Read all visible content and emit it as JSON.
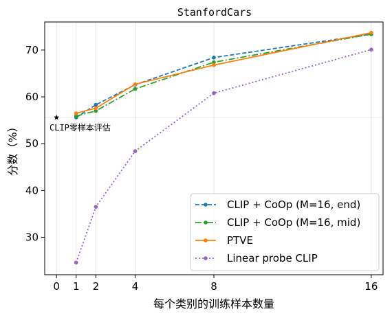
{
  "chart_data": {
    "type": "line",
    "title": "StanfordCars",
    "xlabel": "每个类别的训练样本数量",
    "ylabel": "分数（%）",
    "xlim": [
      -0.6,
      16.6
    ],
    "ylim": [
      22,
      76
    ],
    "x_ticks": [
      0,
      1,
      2,
      4,
      8,
      16
    ],
    "y_ticks": [
      30,
      40,
      50,
      60,
      70
    ],
    "grid": "vertical",
    "legend_position": "lower-right",
    "zero_shot": {
      "x": 0,
      "y": 55.6,
      "label": "CLIP零样本评估",
      "reference_line": true
    },
    "series": [
      {
        "name": "CLIP + CoOp (M=16, end)",
        "color": "#1f77b4",
        "dash": "6,3",
        "x": [
          1,
          2,
          4,
          8,
          16
        ],
        "y": [
          55.6,
          58.3,
          62.6,
          68.4,
          73.4
        ]
      },
      {
        "name": "CLIP + CoOp (M=16, mid)",
        "color": "#2ca02c",
        "dash": "9,3,2,3",
        "x": [
          1,
          2,
          4,
          8,
          16
        ],
        "y": [
          55.9,
          57.0,
          61.7,
          67.4,
          73.4
        ]
      },
      {
        "name": "PTVE",
        "color": "#ff7f0e",
        "dash": "",
        "x": [
          1,
          2,
          4,
          8,
          16
        ],
        "y": [
          56.5,
          57.6,
          62.7,
          66.8,
          73.7
        ]
      },
      {
        "name": "Linear probe CLIP",
        "color": "#9467bd",
        "dash": "2,3",
        "x": [
          1,
          2,
          4,
          8,
          16
        ],
        "y": [
          24.6,
          36.5,
          48.4,
          60.8,
          70.1
        ]
      }
    ]
  }
}
